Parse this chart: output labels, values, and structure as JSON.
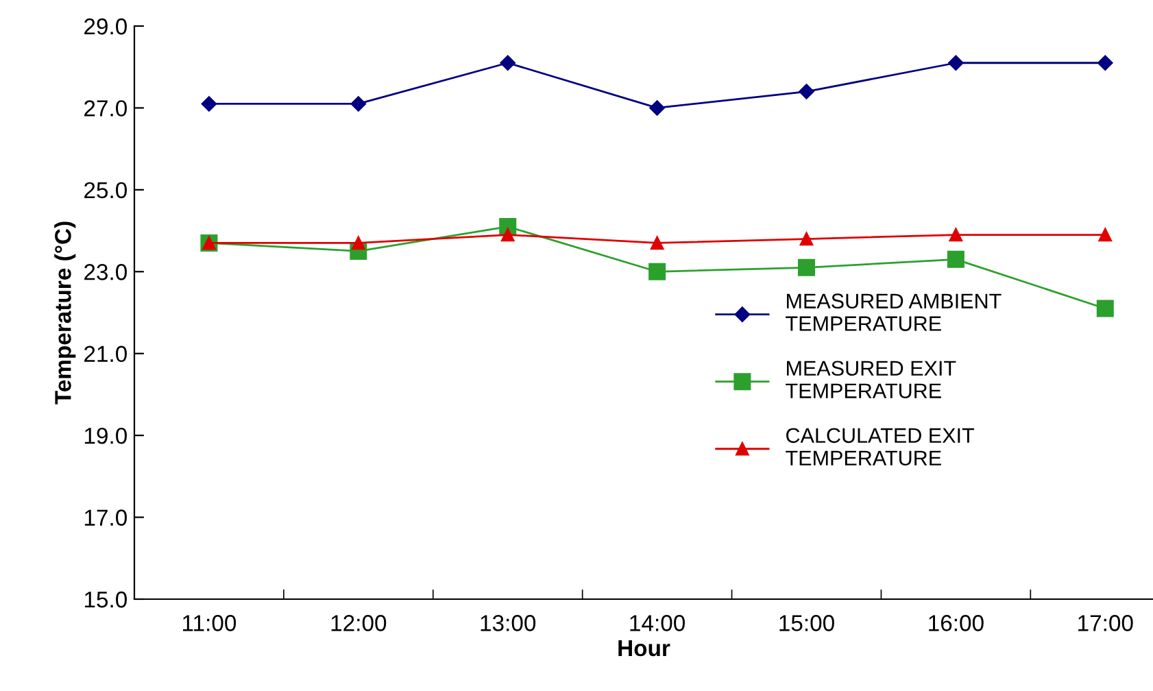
{
  "chart_data": {
    "type": "line",
    "xlabel": "Hour",
    "ylabel": "Temperature (°C)",
    "categories": [
      "11:00",
      "12:00",
      "13:00",
      "14:00",
      "15:00",
      "16:00",
      "17:00"
    ],
    "series": [
      {
        "name": "MEASURED AMBIENT\nTEMPERATURE",
        "color": "#000080",
        "marker": "diamond",
        "values": [
          27.1,
          27.1,
          28.1,
          27.0,
          27.4,
          28.1,
          28.1
        ]
      },
      {
        "name": "MEASURED EXIT\nTEMPERATURE",
        "color": "#2ca02c",
        "marker": "square",
        "values": [
          23.7,
          23.5,
          24.1,
          23.0,
          23.1,
          23.3,
          22.1
        ]
      },
      {
        "name": "CALCULATED EXIT\nTEMPERATURE",
        "color": "#e00000",
        "marker": "triangle",
        "values": [
          23.7,
          23.7,
          23.9,
          23.7,
          23.8,
          23.9,
          23.9
        ]
      }
    ],
    "ylim": [
      15,
      29
    ],
    "yticks": [
      {
        "value": 15,
        "label": "15.0"
      },
      {
        "value": 17,
        "label": "17.0"
      },
      {
        "value": 19,
        "label": "19.0"
      },
      {
        "value": 21,
        "label": "21.0"
      },
      {
        "value": 23,
        "label": "23.0"
      },
      {
        "value": 25,
        "label": "25.0"
      },
      {
        "value": 27,
        "label": "27.0"
      },
      {
        "value": 29,
        "label": "29.0"
      }
    ],
    "grid": false,
    "legend": "center right",
    "line_style": "solid"
  }
}
